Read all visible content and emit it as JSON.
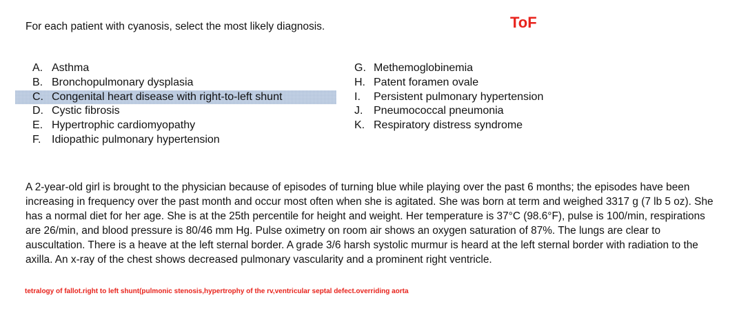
{
  "instruction": "For each patient with cyanosis, select the most likely diagnosis.",
  "tag": "ToF",
  "options_left": [
    {
      "letter": "A.",
      "text": "Asthma"
    },
    {
      "letter": "B.",
      "text": "Bronchopulmonary dysplasia"
    },
    {
      "letter": "C.",
      "text": "Congenital heart disease with right-to-left shunt"
    },
    {
      "letter": "D.",
      "text": "Cystic fibrosis"
    },
    {
      "letter": "E.",
      "text": "Hypertrophic cardiomyopathy"
    },
    {
      "letter": "F.",
      "text": "Idiopathic pulmonary hypertension"
    }
  ],
  "options_right": [
    {
      "letter": "G.",
      "text": "Methemoglobinemia"
    },
    {
      "letter": "H.",
      "text": "Patent foramen ovale"
    },
    {
      "letter": "I.",
      "text": "Persistent pulmonary hypertension"
    },
    {
      "letter": "J.",
      "text": "Pneumococcal pneumonia"
    },
    {
      "letter": "K.",
      "text": "Respiratory distress syndrome"
    }
  ],
  "stem": "A 2-year-old girl is brought to the physician because of episodes of turning blue while playing over the past 6 months; the episodes have been increasing in frequency over the past month and occur most often when she is agitated.  She was born at term and weighed 3317 g (7 lb 5 oz).  She has a normal diet for her age.  She is at the 25th percentile for height and weight.  Her temperature is 37°C (98.6°F), pulse is 100/min, respirations are 26/min, and blood pressure is 80/46 mm Hg.  Pulse oximetry on room air shows an oxygen saturation of 87%.  The lungs are clear to auscultation.  There is a heave at the left sternal border.  A grade 3/6 harsh systolic murmur is heard at the left sternal border with radiation to the axilla.  An x-ray of the chest shows decreased pulmonary vascularity and a prominent right ventricle.",
  "note": "tetralogy of fallot.right to left shunt(pulmonic stenosis,hypertrophy of the rv,ventricular septal defect.overriding aorta",
  "colors": {
    "accent": "#e8231c",
    "selection": "#cfdcec"
  }
}
